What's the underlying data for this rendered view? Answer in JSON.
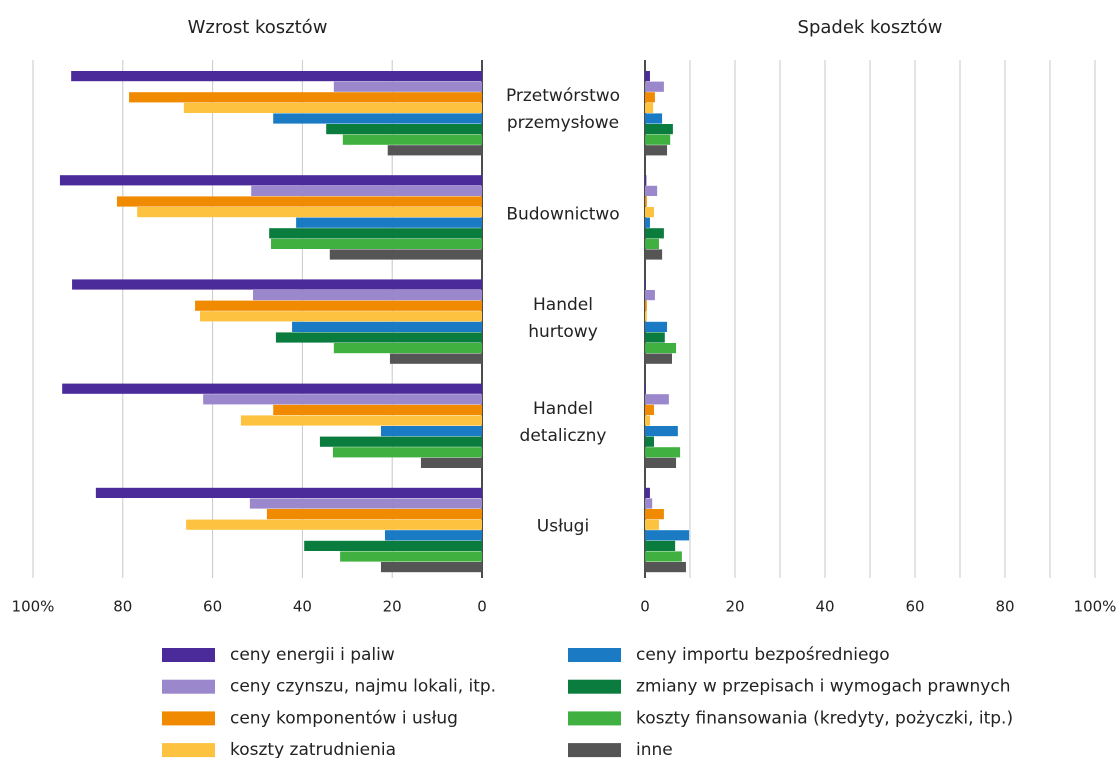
{
  "chart_data": {
    "type": "bar",
    "orientation": "horizontal",
    "categories": [
      "Przetwórstwo\nprzemysłowe",
      "Budownictwo",
      "Handel\nhurtowy",
      "Handel\ndetaliczny",
      "Usługi"
    ],
    "series": [
      {
        "name": "ceny energii i paliw",
        "color": "#4b2a9a"
      },
      {
        "name": "ceny czynszu, najmu lokali, itp.",
        "color": "#9b87cc"
      },
      {
        "name": "ceny komponentów i usług",
        "color": "#f08a00"
      },
      {
        "name": "koszty zatrudnienia",
        "color": "#fcc240"
      },
      {
        "name": "ceny importu bezpośredniego",
        "color": "#1a7bc4"
      },
      {
        "name": "zmiany w przepisach i wymogach prawnych",
        "color": "#0a7d3e"
      },
      {
        "name": "koszty finansowania (kredyty, pożyczki, itp.)",
        "color": "#40b040"
      },
      {
        "name": "inne",
        "color": "#555555"
      }
    ],
    "panels": [
      {
        "title": "Wzrost kosztów",
        "xlim": [
          100,
          0
        ],
        "xticks": [
          {
            "value": 100,
            "label": "100%"
          },
          80,
          60,
          40,
          20,
          0
        ],
        "series": [
          {
            "values": [
              91.5,
              94,
              91.3,
              93.5,
              86
            ]
          },
          {
            "values": [
              33,
              51.4,
              51,
              62.1,
              51.7
            ]
          },
          {
            "values": [
              78.6,
              81.3,
              63.9,
              46.5,
              47.9
            ]
          },
          {
            "values": [
              66.4,
              76.8,
              62.8,
              53.7,
              65.9
            ]
          },
          {
            "values": [
              46.5,
              41.4,
              42.3,
              22.5,
              21.6
            ]
          },
          {
            "values": [
              34.7,
              47.4,
              45.9,
              36.1,
              39.6
            ]
          },
          {
            "values": [
              31,
              47,
              33,
              33.2,
              31.6
            ]
          },
          {
            "values": [
              21,
              33.9,
              20.5,
              13.6,
              22.5
            ]
          }
        ]
      },
      {
        "title": "Spadek kosztów",
        "xlim": [
          0,
          100
        ],
        "xticks": [
          0,
          20,
          40,
          60,
          80,
          {
            "value": 100,
            "label": "100%"
          }
        ],
        "minor_xticks": [
          10,
          30,
          50,
          70,
          90
        ],
        "series": [
          {
            "values": [
              1.1,
              0.3,
              0.2,
              0.2,
              1.1
            ]
          },
          {
            "values": [
              4.2,
              2.7,
              2.2,
              5.3,
              1.6
            ]
          },
          {
            "values": [
              2.2,
              0.4,
              0.4,
              2,
              4.2
            ]
          },
          {
            "values": [
              1.8,
              2,
              0.4,
              1.1,
              3.1
            ]
          },
          {
            "values": [
              3.8,
              1.1,
              4.9,
              7.3,
              9.8
            ]
          },
          {
            "values": [
              6.2,
              4.2,
              4.4,
              2,
              6.7
            ]
          },
          {
            "values": [
              5.6,
              3.1,
              6.9,
              7.8,
              8.2
            ]
          },
          {
            "values": [
              4.9,
              3.8,
              6,
              6.9,
              9.1
            ]
          }
        ]
      }
    ],
    "grid": true
  }
}
